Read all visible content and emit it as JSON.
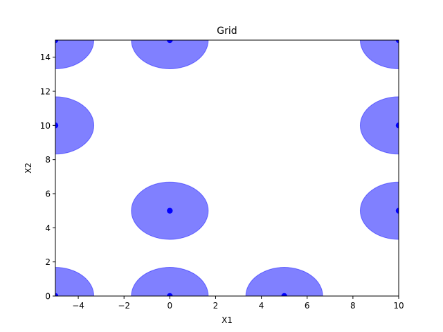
{
  "chart_data": {
    "type": "scatter",
    "title": "Grid",
    "xlabel": "X1",
    "ylabel": "X2",
    "xlim": [
      -5,
      10
    ],
    "ylim": [
      0,
      15
    ],
    "grid": false,
    "x_ticks": [
      -4,
      -2,
      0,
      2,
      4,
      6,
      8,
      10
    ],
    "y_ticks": [
      0,
      2,
      4,
      6,
      8,
      10,
      12,
      14
    ],
    "x_tick_labels": [
      "−4",
      "−2",
      "0",
      "2",
      "4",
      "6",
      "8",
      "10"
    ],
    "y_tick_labels": [
      "0",
      "2",
      "4",
      "6",
      "8",
      "10",
      "12",
      "14"
    ],
    "marker_color": "#0000ff",
    "circle_fill": "#8080ff",
    "circle_radius": 1.68,
    "points": [
      {
        "x": -5,
        "y": 0
      },
      {
        "x": 0,
        "y": 0
      },
      {
        "x": 5,
        "y": 0
      },
      {
        "x": 0,
        "y": 5
      },
      {
        "x": 10,
        "y": 5
      },
      {
        "x": -5,
        "y": 10
      },
      {
        "x": 10,
        "y": 10
      },
      {
        "x": -5,
        "y": 15
      },
      {
        "x": 0,
        "y": 15
      },
      {
        "x": 10,
        "y": 15
      }
    ]
  }
}
